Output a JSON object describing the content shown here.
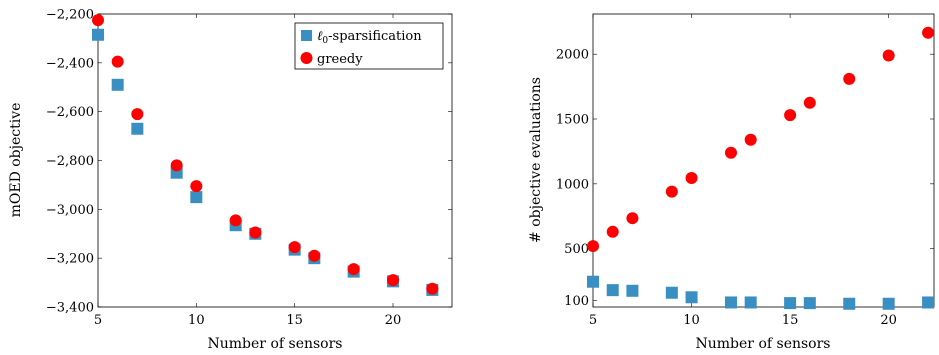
{
  "chart_data": [
    {
      "type": "scatter",
      "xlabel": "Number of sensors",
      "ylabel": "mOED objective",
      "xlim": [
        5,
        23
      ],
      "ylim": [
        -3400,
        -2200
      ],
      "x_ticks": [
        5,
        10,
        15,
        20
      ],
      "x_tick_labels": [
        "5",
        "10",
        "15",
        "20"
      ],
      "y_ticks": [
        -2200,
        -2400,
        -2600,
        -2800,
        -3000,
        -3200,
        -3400
      ],
      "y_tick_labels": [
        "−2,200",
        "−2,400",
        "−2,600",
        "−2,800",
        "−3,000",
        "−3,200",
        "−3,400"
      ],
      "grid": false,
      "legend_position": "top-right",
      "series": [
        {
          "name": "ℓ",
          "name_subscript": "0",
          "name_suffix": "-sparsification",
          "marker": "square",
          "color": "#3a8fc2",
          "x": [
            5,
            6,
            7,
            9,
            10,
            12,
            13,
            15,
            16,
            18,
            20,
            22
          ],
          "y": [
            -2285,
            -2490,
            -2670,
            -2850,
            -2950,
            -3065,
            -3100,
            -3165,
            -3200,
            -3255,
            -3295,
            -3330
          ]
        },
        {
          "name": "greedy",
          "marker": "circle",
          "color": "#ff0000",
          "x": [
            5,
            6,
            7,
            9,
            10,
            12,
            13,
            15,
            16,
            18,
            20,
            22
          ],
          "y": [
            -2225,
            -2395,
            -2610,
            -2820,
            -2905,
            -3045,
            -3095,
            -3155,
            -3190,
            -3245,
            -3290,
            -3325
          ]
        }
      ]
    },
    {
      "type": "scatter",
      "xlabel": "Number of sensors",
      "ylabel": "# objective evaluations",
      "xlim": [
        5,
        22.3
      ],
      "ylim": [
        50,
        2310
      ],
      "x_ticks": [
        5,
        10,
        15,
        20
      ],
      "x_tick_labels": [
        "5",
        "10",
        "15",
        "20"
      ],
      "y_ticks": [
        100,
        500,
        1000,
        1500,
        2000
      ],
      "y_tick_labels": [
        "100",
        "500",
        "1000",
        "1500",
        "2000"
      ],
      "grid": false,
      "series": [
        {
          "name": "ℓ₀-sparsification",
          "marker": "square",
          "color": "#3a8fc2",
          "x": [
            5,
            6,
            7,
            9,
            10,
            12,
            13,
            15,
            16,
            18,
            20,
            22
          ],
          "y": [
            245,
            180,
            175,
            160,
            125,
            85,
            85,
            80,
            80,
            75,
            75,
            85
          ]
        },
        {
          "name": "greedy",
          "marker": "circle",
          "color": "#ff0000",
          "x": [
            5,
            6,
            7,
            9,
            10,
            12,
            13,
            15,
            16,
            18,
            20,
            22
          ],
          "y": [
            520,
            630,
            735,
            940,
            1045,
            1240,
            1340,
            1530,
            1625,
            1810,
            1990,
            2165
          ]
        }
      ]
    }
  ]
}
